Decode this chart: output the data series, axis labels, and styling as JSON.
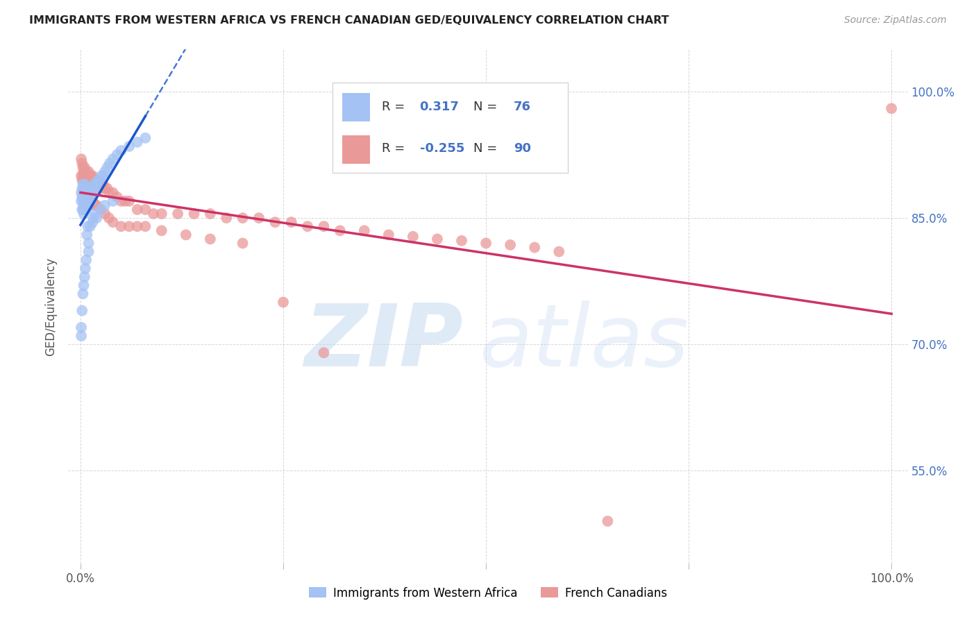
{
  "title": "IMMIGRANTS FROM WESTERN AFRICA VS FRENCH CANADIAN GED/EQUIVALENCY CORRELATION CHART",
  "source": "Source: ZipAtlas.com",
  "ylabel": "GED/Equivalency",
  "legend_label1": "Immigrants from Western Africa",
  "legend_label2": "French Canadians",
  "R1": 0.317,
  "N1": 76,
  "R2": -0.255,
  "N2": 90,
  "color1": "#a4c2f4",
  "color2": "#ea9999",
  "line_color1": "#1a56cc",
  "line_color2": "#cc3366",
  "background_color": "#ffffff",
  "watermark_zip": "ZIP",
  "watermark_atlas": "atlas",
  "ytick_vals": [
    0.55,
    0.7,
    0.85,
    1.0
  ],
  "ytick_labels": [
    "55.0%",
    "70.0%",
    "85.0%",
    "100.0%"
  ],
  "blue_x": [
    0.001,
    0.001,
    0.002,
    0.002,
    0.002,
    0.003,
    0.003,
    0.003,
    0.003,
    0.004,
    0.004,
    0.004,
    0.004,
    0.005,
    0.005,
    0.005,
    0.005,
    0.006,
    0.006,
    0.006,
    0.007,
    0.007,
    0.007,
    0.008,
    0.008,
    0.008,
    0.009,
    0.009,
    0.01,
    0.01,
    0.011,
    0.011,
    0.012,
    0.012,
    0.013,
    0.013,
    0.014,
    0.015,
    0.016,
    0.017,
    0.018,
    0.019,
    0.02,
    0.022,
    0.024,
    0.026,
    0.028,
    0.03,
    0.033,
    0.036,
    0.04,
    0.045,
    0.05,
    0.06,
    0.07,
    0.08,
    0.01,
    0.01,
    0.005,
    0.006,
    0.007,
    0.003,
    0.004,
    0.002,
    0.001,
    0.001,
    0.008,
    0.009,
    0.02,
    0.015,
    0.012,
    0.016,
    0.025,
    0.03,
    0.04,
    0.018
  ],
  "blue_y": [
    0.88,
    0.87,
    0.885,
    0.875,
    0.86,
    0.89,
    0.88,
    0.87,
    0.86,
    0.885,
    0.875,
    0.865,
    0.855,
    0.89,
    0.88,
    0.87,
    0.86,
    0.885,
    0.875,
    0.865,
    0.88,
    0.87,
    0.86,
    0.885,
    0.875,
    0.865,
    0.88,
    0.87,
    0.885,
    0.875,
    0.88,
    0.87,
    0.885,
    0.875,
    0.88,
    0.87,
    0.885,
    0.88,
    0.885,
    0.89,
    0.885,
    0.89,
    0.89,
    0.895,
    0.895,
    0.9,
    0.9,
    0.905,
    0.91,
    0.915,
    0.92,
    0.925,
    0.93,
    0.935,
    0.94,
    0.945,
    0.82,
    0.81,
    0.78,
    0.79,
    0.8,
    0.76,
    0.77,
    0.74,
    0.72,
    0.71,
    0.83,
    0.84,
    0.85,
    0.845,
    0.84,
    0.85,
    0.86,
    0.865,
    0.87,
    0.855
  ],
  "pink_x": [
    0.001,
    0.001,
    0.002,
    0.002,
    0.003,
    0.003,
    0.004,
    0.004,
    0.005,
    0.005,
    0.006,
    0.006,
    0.007,
    0.007,
    0.008,
    0.008,
    0.009,
    0.01,
    0.01,
    0.011,
    0.012,
    0.013,
    0.014,
    0.015,
    0.016,
    0.017,
    0.018,
    0.019,
    0.02,
    0.022,
    0.024,
    0.026,
    0.028,
    0.03,
    0.033,
    0.036,
    0.04,
    0.045,
    0.05,
    0.055,
    0.06,
    0.07,
    0.08,
    0.09,
    0.1,
    0.12,
    0.14,
    0.16,
    0.18,
    0.2,
    0.22,
    0.24,
    0.26,
    0.28,
    0.3,
    0.32,
    0.35,
    0.38,
    0.41,
    0.44,
    0.47,
    0.5,
    0.53,
    0.56,
    0.59,
    0.006,
    0.007,
    0.008,
    0.009,
    0.01,
    0.012,
    0.015,
    0.018,
    0.02,
    0.025,
    0.03,
    0.035,
    0.04,
    0.05,
    0.06,
    0.07,
    0.08,
    0.1,
    0.13,
    0.16,
    0.2,
    0.25,
    0.3,
    0.65,
    1.0
  ],
  "pink_y": [
    0.92,
    0.9,
    0.915,
    0.895,
    0.91,
    0.9,
    0.905,
    0.895,
    0.91,
    0.9,
    0.905,
    0.895,
    0.905,
    0.895,
    0.9,
    0.89,
    0.895,
    0.905,
    0.895,
    0.9,
    0.895,
    0.9,
    0.895,
    0.9,
    0.895,
    0.89,
    0.895,
    0.89,
    0.895,
    0.89,
    0.89,
    0.885,
    0.89,
    0.885,
    0.885,
    0.88,
    0.88,
    0.875,
    0.87,
    0.87,
    0.87,
    0.86,
    0.86,
    0.855,
    0.855,
    0.855,
    0.855,
    0.855,
    0.85,
    0.85,
    0.85,
    0.845,
    0.845,
    0.84,
    0.84,
    0.835,
    0.835,
    0.83,
    0.828,
    0.825,
    0.823,
    0.82,
    0.818,
    0.815,
    0.81,
    0.885,
    0.87,
    0.875,
    0.865,
    0.875,
    0.865,
    0.87,
    0.865,
    0.865,
    0.86,
    0.855,
    0.85,
    0.845,
    0.84,
    0.84,
    0.84,
    0.84,
    0.835,
    0.83,
    0.825,
    0.82,
    0.75,
    0.69,
    0.49,
    0.98
  ]
}
